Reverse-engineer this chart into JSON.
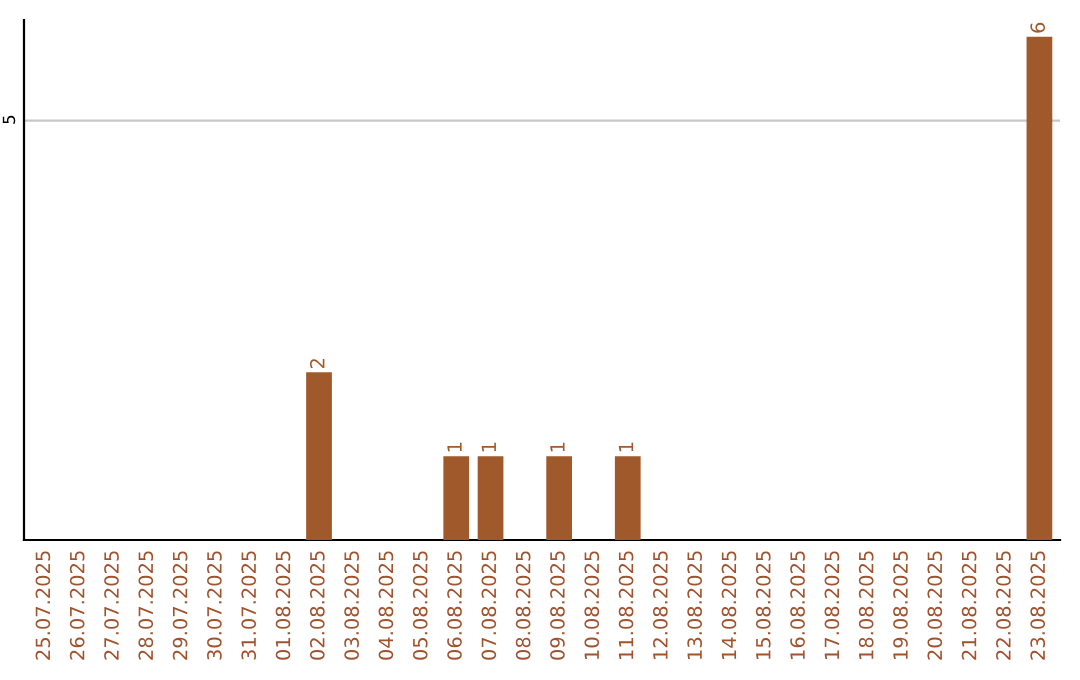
{
  "chart_data": {
    "type": "bar",
    "categories": [
      "25.07.2025",
      "26.07.2025",
      "27.07.2025",
      "28.07.2025",
      "29.07.2025",
      "30.07.2025",
      "31.07.2025",
      "01.08.2025",
      "02.08.2025",
      "03.08.2025",
      "04.08.2025",
      "05.08.2025",
      "06.08.2025",
      "07.08.2025",
      "08.08.2025",
      "09.08.2025",
      "10.08.2025",
      "11.08.2025",
      "12.08.2025",
      "13.08.2025",
      "14.08.2025",
      "15.08.2025",
      "16.08.2025",
      "17.08.2025",
      "18.08.2025",
      "19.08.2025",
      "20.08.2025",
      "21.08.2025",
      "22.08.2025",
      "23.08.2025"
    ],
    "values": [
      0,
      0,
      0,
      0,
      0,
      0,
      0,
      0,
      2,
      0,
      0,
      0,
      1,
      1,
      0,
      1,
      0,
      1,
      0,
      0,
      0,
      0,
      0,
      0,
      0,
      0,
      0,
      0,
      0,
      6
    ],
    "value_labels": [
      null,
      null,
      null,
      null,
      null,
      null,
      null,
      null,
      "2",
      null,
      null,
      null,
      "1",
      "1",
      null,
      "1",
      null,
      "1",
      null,
      null,
      null,
      null,
      null,
      null,
      null,
      null,
      null,
      null,
      null,
      "6"
    ],
    "color": "#a0592a",
    "ylim": [
      0,
      6.2
    ],
    "yticks": [
      5
    ],
    "grid": "y"
  }
}
